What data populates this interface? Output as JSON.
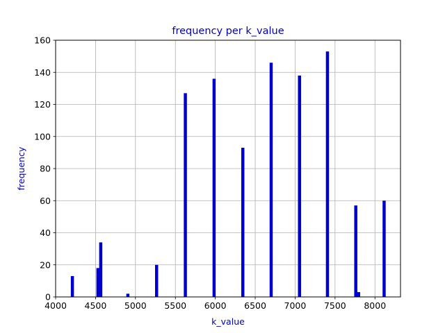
{
  "chart_data": {
    "type": "bar",
    "title": "frequency per k_value",
    "xlabel": "k_value",
    "ylabel": "frequency",
    "xlim": [
      4000,
      8320
    ],
    "ylim": [
      0,
      160
    ],
    "xticks": [
      4000,
      4500,
      5000,
      5500,
      6000,
      6500,
      7000,
      7500,
      8000
    ],
    "yticks": [
      0,
      20,
      40,
      60,
      80,
      100,
      120,
      140,
      160
    ],
    "grid": true,
    "bar_color": "#0000cc",
    "bin_width": 39,
    "bins": [
      {
        "x": 4210,
        "y": 13
      },
      {
        "x": 4530,
        "y": 18
      },
      {
        "x": 4565,
        "y": 34
      },
      {
        "x": 4905,
        "y": 2
      },
      {
        "x": 5265,
        "y": 20
      },
      {
        "x": 5625,
        "y": 127
      },
      {
        "x": 5985,
        "y": 136
      },
      {
        "x": 6345,
        "y": 93
      },
      {
        "x": 6700,
        "y": 146
      },
      {
        "x": 7055,
        "y": 138
      },
      {
        "x": 7405,
        "y": 153
      },
      {
        "x": 7760,
        "y": 57
      },
      {
        "x": 7795,
        "y": 3
      },
      {
        "x": 8115,
        "y": 60
      }
    ]
  }
}
